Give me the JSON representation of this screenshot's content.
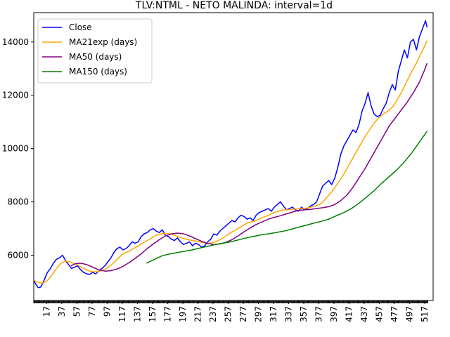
{
  "chart_data": {
    "type": "line",
    "title": "TLV:NTML - NETO MALINDA: interval=1d",
    "xlabel": "",
    "ylabel": "",
    "xlim": [
      0,
      528
    ],
    "ylim": [
      4300,
      15100
    ],
    "x_ticks": [
      17,
      37,
      57,
      77,
      97,
      117,
      137,
      157,
      177,
      197,
      217,
      237,
      257,
      277,
      297,
      317,
      337,
      357,
      377,
      397,
      417,
      437,
      457,
      477,
      497,
      517
    ],
    "y_ticks": [
      6000,
      8000,
      10000,
      12000,
      14000
    ],
    "y_tick_labels": [
      "6000",
      "8000",
      "10000",
      "12000",
      "14000"
    ],
    "legend_position": "upper-left",
    "grid": false,
    "series": [
      {
        "name": "Close",
        "color": "#0000ff",
        "x": [
          0,
          3,
          6,
          9,
          12,
          15,
          18,
          22,
          26,
          30,
          34,
          38,
          42,
          46,
          50,
          54,
          58,
          62,
          66,
          70,
          74,
          78,
          82,
          86,
          90,
          94,
          98,
          102,
          106,
          110,
          114,
          118,
          122,
          126,
          130,
          134,
          138,
          142,
          146,
          150,
          154,
          158,
          162,
          166,
          170,
          174,
          178,
          182,
          186,
          190,
          194,
          198,
          202,
          206,
          210,
          214,
          218,
          222,
          226,
          230,
          234,
          238,
          242,
          246,
          250,
          254,
          258,
          262,
          266,
          270,
          274,
          278,
          282,
          286,
          290,
          294,
          298,
          302,
          306,
          310,
          314,
          318,
          322,
          326,
          330,
          334,
          338,
          342,
          346,
          350,
          354,
          358,
          362,
          366,
          370,
          374,
          378,
          382,
          386,
          390,
          394,
          398,
          402,
          406,
          410,
          414,
          418,
          422,
          426,
          430,
          434,
          438,
          442,
          446,
          450,
          454,
          458,
          462,
          466,
          470,
          474,
          478,
          482,
          486,
          490,
          494,
          498,
          502,
          506,
          510,
          514,
          518,
          520
        ],
        "values": [
          5050,
          4900,
          4780,
          4800,
          4950,
          5150,
          5350,
          5500,
          5700,
          5850,
          5900,
          6000,
          5800,
          5650,
          5500,
          5550,
          5600,
          5450,
          5350,
          5300,
          5280,
          5350,
          5300,
          5400,
          5500,
          5600,
          5750,
          5900,
          6100,
          6250,
          6300,
          6200,
          6250,
          6350,
          6500,
          6450,
          6500,
          6700,
          6800,
          6850,
          6950,
          7000,
          6900,
          6850,
          6950,
          6750,
          6700,
          6600,
          6550,
          6650,
          6500,
          6400,
          6450,
          6500,
          6350,
          6450,
          6400,
          6300,
          6350,
          6500,
          6600,
          6800,
          6750,
          6900,
          7000,
          7100,
          7200,
          7300,
          7250,
          7400,
          7500,
          7450,
          7350,
          7400,
          7300,
          7500,
          7600,
          7650,
          7700,
          7750,
          7650,
          7800,
          7900,
          8000,
          7850,
          7700,
          7750,
          7800,
          7700,
          7650,
          7800,
          7700,
          7750,
          7850,
          7900,
          8000,
          8300,
          8600,
          8700,
          8800,
          8650,
          8900,
          9300,
          9800,
          10100,
          10300,
          10500,
          10700,
          10600,
          10900,
          11400,
          11700,
          12100,
          11600,
          11300,
          11200,
          11250,
          11500,
          11700,
          12100,
          12400,
          12200,
          12900,
          13300,
          13700,
          13400,
          14000,
          14100,
          13700,
          14200,
          14500,
          14800,
          14550
        ],
        "markers": false
      },
      {
        "name": "MA21exp (days)",
        "color": "#ffa500",
        "x": [
          0,
          6,
          12,
          18,
          24,
          30,
          36,
          42,
          48,
          54,
          60,
          66,
          72,
          78,
          84,
          90,
          96,
          102,
          108,
          114,
          120,
          126,
          132,
          138,
          144,
          150,
          156,
          162,
          168,
          174,
          180,
          186,
          192,
          198,
          204,
          210,
          216,
          222,
          228,
          234,
          240,
          246,
          252,
          258,
          264,
          270,
          276,
          282,
          288,
          294,
          300,
          306,
          312,
          318,
          324,
          330,
          336,
          342,
          348,
          354,
          360,
          366,
          372,
          378,
          384,
          390,
          396,
          402,
          408,
          414,
          420,
          426,
          432,
          438,
          444,
          450,
          456,
          462,
          468,
          474,
          480,
          486,
          492,
          498,
          504,
          510,
          516,
          520
        ],
        "values": [
          5050,
          4980,
          4950,
          5050,
          5250,
          5500,
          5700,
          5780,
          5750,
          5680,
          5600,
          5500,
          5420,
          5380,
          5380,
          5420,
          5500,
          5620,
          5780,
          5950,
          6080,
          6150,
          6250,
          6350,
          6450,
          6550,
          6650,
          6750,
          6800,
          6820,
          6800,
          6750,
          6680,
          6620,
          6580,
          6550,
          6520,
          6480,
          6450,
          6450,
          6500,
          6580,
          6680,
          6800,
          6900,
          7000,
          7100,
          7200,
          7250,
          7300,
          7380,
          7450,
          7520,
          7600,
          7650,
          7700,
          7700,
          7720,
          7740,
          7740,
          7760,
          7800,
          7850,
          7900,
          8050,
          8250,
          8450,
          8700,
          8950,
          9250,
          9550,
          9850,
          10150,
          10450,
          10700,
          10950,
          11150,
          11300,
          11400,
          11550,
          11800,
          12100,
          12450,
          12800,
          13100,
          13450,
          13800,
          14050
        ],
        "markers": false
      },
      {
        "name": "MA50 (days)",
        "color": "#800080",
        "x": [
          49,
          55,
          62,
          70,
          78,
          86,
          94,
          102,
          110,
          118,
          126,
          134,
          142,
          150,
          158,
          166,
          174,
          182,
          190,
          198,
          206,
          214,
          222,
          230,
          238,
          246,
          254,
          262,
          270,
          278,
          286,
          294,
          302,
          310,
          318,
          326,
          334,
          342,
          350,
          358,
          366,
          374,
          382,
          390,
          398,
          406,
          414,
          422,
          430,
          438,
          446,
          454,
          462,
          470,
          478,
          486,
          494,
          502,
          510,
          516,
          520
        ],
        "values": [
          5600,
          5680,
          5700,
          5650,
          5550,
          5450,
          5400,
          5420,
          5480,
          5580,
          5720,
          5880,
          6050,
          6250,
          6420,
          6580,
          6720,
          6800,
          6830,
          6800,
          6720,
          6620,
          6520,
          6440,
          6400,
          6420,
          6480,
          6580,
          6720,
          6880,
          7020,
          7150,
          7250,
          7350,
          7420,
          7480,
          7550,
          7620,
          7680,
          7700,
          7720,
          7750,
          7780,
          7820,
          7900,
          8050,
          8250,
          8550,
          8900,
          9250,
          9650,
          10050,
          10450,
          10850,
          11150,
          11450,
          11750,
          12100,
          12500,
          12900,
          13200
        ],
        "markers": false
      },
      {
        "name": "MA150 (days)",
        "color": "#008000",
        "x": [
          149,
          160,
          170,
          180,
          190,
          200,
          210,
          220,
          230,
          240,
          250,
          260,
          270,
          280,
          290,
          300,
          310,
          320,
          330,
          340,
          350,
          360,
          370,
          380,
          390,
          400,
          410,
          420,
          430,
          440,
          450,
          460,
          470,
          480,
          490,
          500,
          510,
          520
        ],
        "values": [
          5700,
          5850,
          5980,
          6050,
          6100,
          6150,
          6200,
          6270,
          6330,
          6400,
          6450,
          6500,
          6570,
          6640,
          6700,
          6760,
          6800,
          6850,
          6900,
          6970,
          7050,
          7120,
          7200,
          7270,
          7350,
          7480,
          7600,
          7750,
          7950,
          8180,
          8420,
          8700,
          8950,
          9200,
          9500,
          9850,
          10250,
          10650
        ],
        "markers": false
      }
    ]
  }
}
